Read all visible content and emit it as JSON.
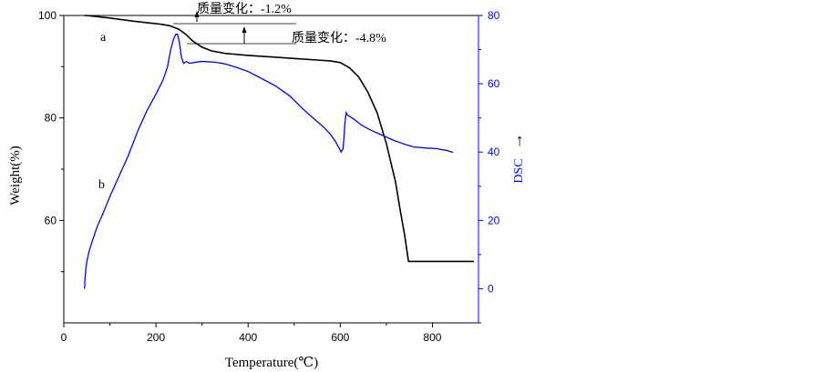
{
  "chart_data": {
    "type": "line",
    "xlabel": "Temperature(℃)",
    "ylabel_left": "Weight(%)",
    "ylabel_right": "DSC",
    "ylabel_right_arrow": "→",
    "x_ticks": [
      "0",
      "200",
      "400",
      "600",
      "800"
    ],
    "y_left_ticks": [
      "60",
      "80",
      "100"
    ],
    "y_right_ticks": [
      "0",
      "20",
      "40",
      "60",
      "80"
    ],
    "xlim": [
      0,
      900
    ],
    "ylim_left": [
      40,
      100
    ],
    "ylim_right": [
      -10,
      80
    ],
    "grid": false,
    "colors": {
      "weight": "#000000",
      "dsc": "#0000ff",
      "right_axis": "#0000ff"
    },
    "series": [
      {
        "label": "a",
        "axis": "left",
        "x": [
          45,
          60,
          100,
          150,
          180,
          210,
          230,
          250,
          265,
          280,
          300,
          320,
          350,
          400,
          450,
          500,
          550,
          580,
          600,
          620,
          640,
          660,
          680,
          700,
          720,
          730,
          740,
          748,
          760,
          800,
          850,
          890
        ],
        "y": [
          100,
          99.9,
          99.5,
          98.9,
          98.6,
          98.3,
          98.0,
          97.3,
          96.3,
          95.0,
          93.8,
          93.1,
          92.6,
          92.2,
          91.9,
          91.6,
          91.3,
          91.1,
          90.8,
          89.8,
          88.0,
          85.0,
          81.0,
          75.0,
          67.5,
          62.0,
          57.0,
          52.0,
          52.0,
          52.0,
          52.0,
          52.0
        ]
      },
      {
        "label": "b",
        "axis": "right",
        "x": [
          45,
          46,
          48,
          50,
          55,
          62,
          72,
          85,
          100,
          120,
          140,
          160,
          180,
          200,
          215,
          225,
          232,
          238,
          243,
          247,
          251,
          255,
          260,
          266,
          273,
          282,
          295,
          310,
          330,
          350,
          375,
          400,
          430,
          460,
          490,
          520,
          545,
          565,
          580,
          590,
          597,
          602,
          606,
          608,
          610,
          613,
          616,
          620,
          630,
          645,
          665,
          690,
          715,
          740,
          760,
          785,
          810,
          830,
          845
        ],
        "y": [
          0,
          3,
          6,
          8,
          11,
          14,
          18,
          22,
          27,
          33,
          39,
          46,
          52,
          57,
          61,
          65,
          70,
          73,
          74.5,
          74.5,
          72,
          68,
          66,
          66.5,
          66,
          66.2,
          66.5,
          66.5,
          66.3,
          65.8,
          64.8,
          63.6,
          61.5,
          59.3,
          56.5,
          52.5,
          49.5,
          47.2,
          45.0,
          43.0,
          41.3,
          40.0,
          41.0,
          44.0,
          48.5,
          51.5,
          50.8,
          50.5,
          49.6,
          48.0,
          46.5,
          45.0,
          43.5,
          42.3,
          41.5,
          41.2,
          41.0,
          40.5,
          39.9
        ]
      }
    ],
    "annotations": [
      {
        "text": "质量变化：-1.2%",
        "dy": -1.2
      },
      {
        "text": "质量变化：-4.8%",
        "dy": -4.8
      }
    ]
  }
}
